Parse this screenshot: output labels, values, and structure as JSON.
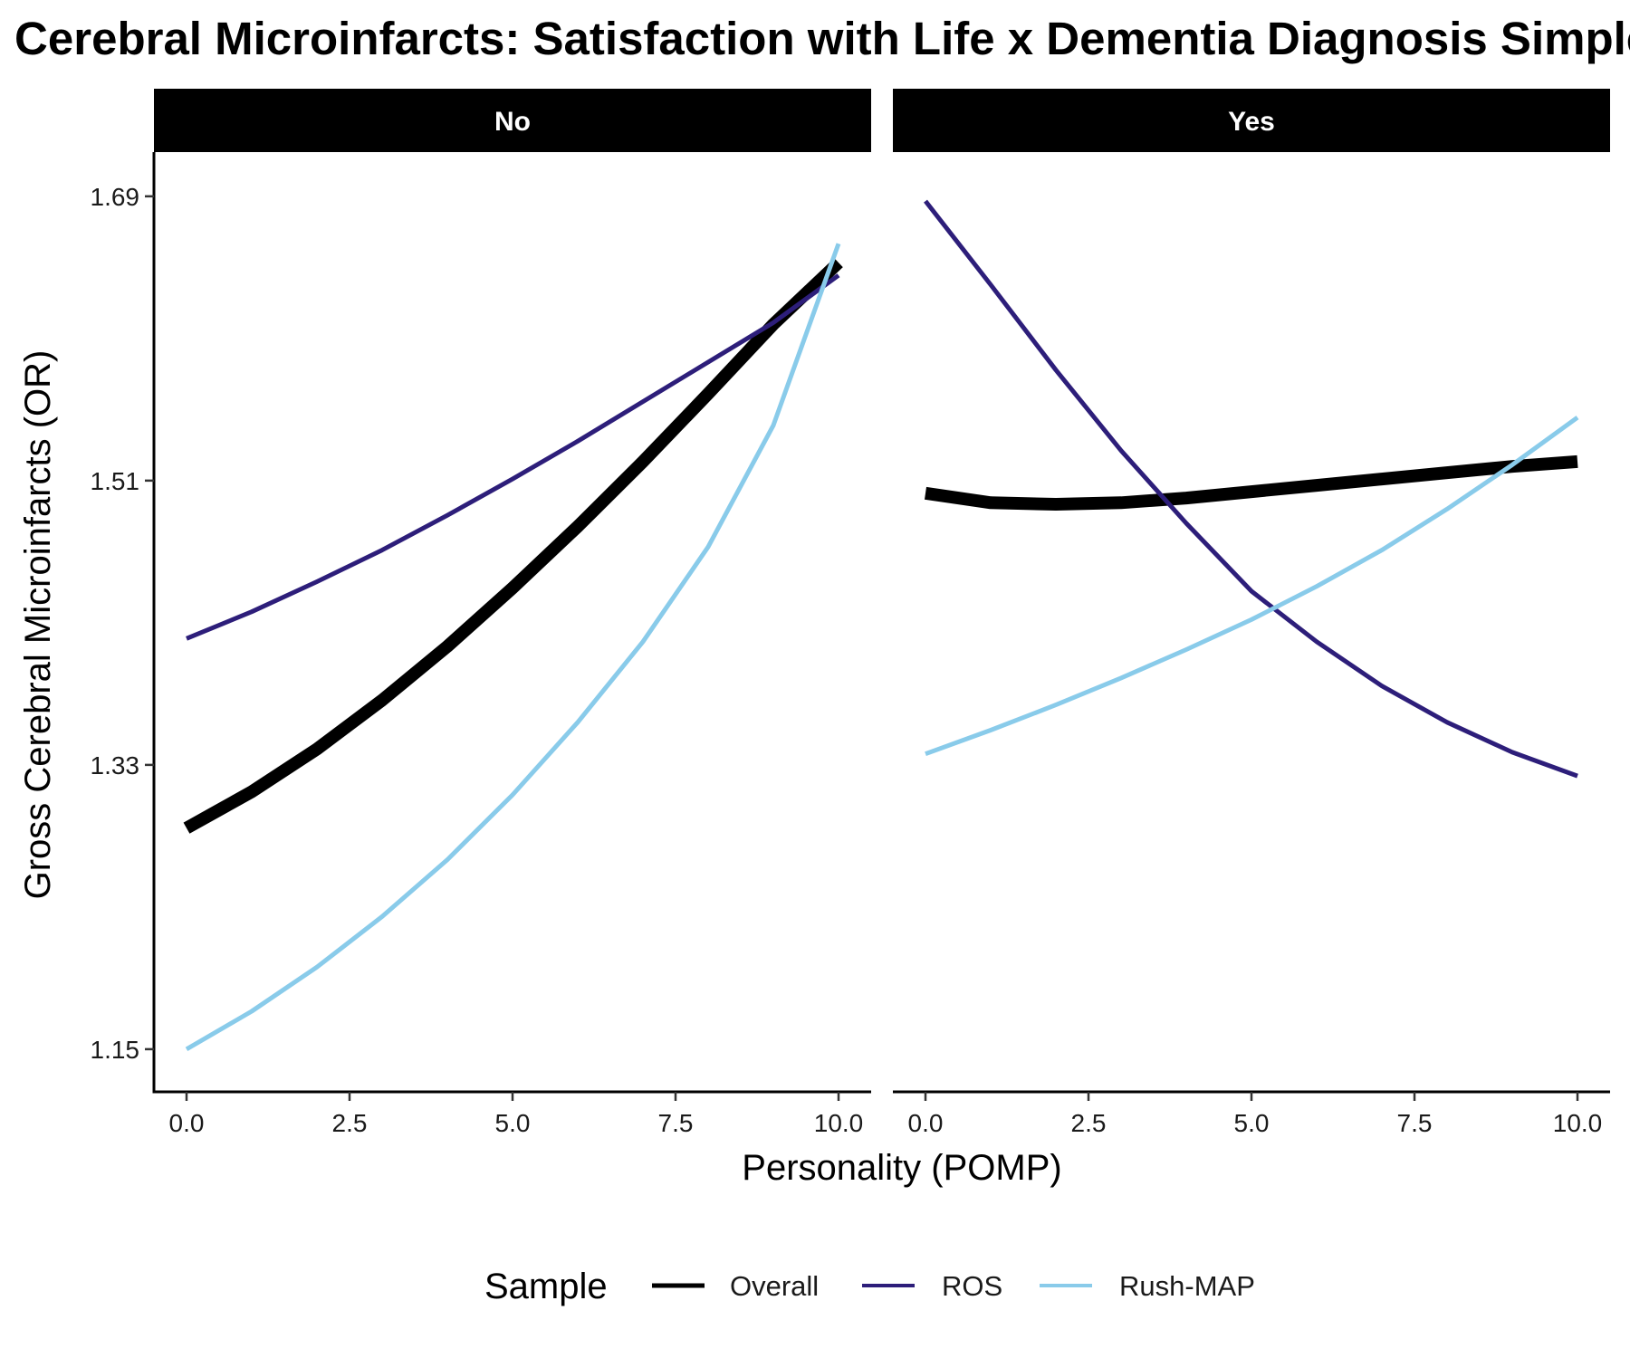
{
  "chart_data": {
    "type": "line",
    "title": "Gross Cerebral Microinfarcts: Satisfaction with Life x Dementia Diagnosis Simple Slopes",
    "xlabel": "Personality (POMP)",
    "ylabel": "Gross Cerebral Microinfarcts (OR)",
    "x_ticks": [
      "0.0",
      "2.5",
      "5.0",
      "7.5",
      "10.0"
    ],
    "y_ticks": [
      "1.15",
      "1.33",
      "1.51",
      "1.69"
    ],
    "xlim": [
      -0.5,
      10.5
    ],
    "ylim": [
      1.123,
      1.718
    ],
    "grid": false,
    "facets": [
      "No",
      "Yes"
    ],
    "legend": {
      "title": "Sample",
      "position": "bottom",
      "entries": [
        "Overall",
        "ROS",
        "Rush-MAP"
      ]
    },
    "series": [
      {
        "name": "Overall",
        "color": "#000000",
        "thick": true,
        "panels": {
          "No": {
            "x": [
              0,
              1,
              2,
              3,
              4,
              5,
              6,
              7,
              8,
              9,
              10
            ],
            "y": [
              1.29,
              1.313,
              1.34,
              1.371,
              1.405,
              1.442,
              1.481,
              1.522,
              1.565,
              1.609,
              1.648
            ]
          },
          "Yes": {
            "x": [
              0,
              1,
              2,
              3,
              4,
              5,
              6,
              7,
              8,
              9,
              10
            ],
            "y": [
              1.502,
              1.496,
              1.495,
              1.496,
              1.499,
              1.503,
              1.507,
              1.511,
              1.515,
              1.519,
              1.522
            ]
          }
        }
      },
      {
        "name": "ROS",
        "color": "#2d1e7a",
        "thick": false,
        "panels": {
          "No": {
            "x": [
              0,
              1,
              2,
              3,
              4,
              5,
              6,
              7,
              8,
              9,
              10
            ],
            "y": [
              1.41,
              1.427,
              1.446,
              1.466,
              1.488,
              1.511,
              1.535,
              1.56,
              1.585,
              1.61,
              1.64
            ]
          },
          "Yes": {
            "x": [
              0,
              1,
              2,
              3,
              4,
              5,
              6,
              7,
              8,
              9,
              10
            ],
            "y": [
              1.687,
              1.634,
              1.58,
              1.529,
              1.483,
              1.44,
              1.408,
              1.38,
              1.357,
              1.338,
              1.323
            ]
          }
        }
      },
      {
        "name": "Rush-MAP",
        "color": "#89cbea",
        "thick": false,
        "panels": {
          "No": {
            "x": [
              0,
              1,
              2,
              3,
              4,
              5,
              6,
              7,
              8,
              9,
              10
            ],
            "y": [
              1.15,
              1.174,
              1.202,
              1.234,
              1.27,
              1.311,
              1.357,
              1.408,
              1.468,
              1.545,
              1.66
            ]
          },
          "Yes": {
            "x": [
              0,
              1,
              2,
              3,
              4,
              5,
              6,
              7,
              8,
              9,
              10
            ],
            "y": [
              1.337,
              1.352,
              1.368,
              1.385,
              1.403,
              1.422,
              1.443,
              1.466,
              1.492,
              1.52,
              1.55
            ]
          }
        }
      }
    ]
  }
}
